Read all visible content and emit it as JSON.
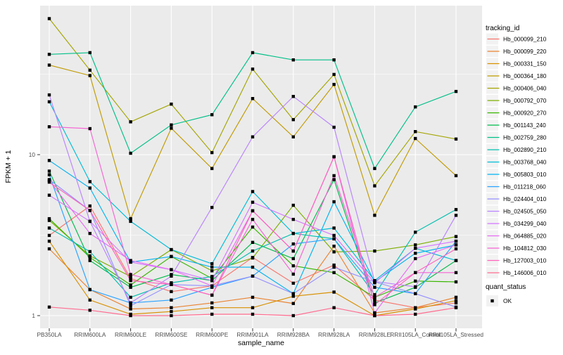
{
  "figure": {
    "y_axis_title": "FPKM + 1",
    "x_axis_title": "sample_name",
    "y_tick_labels": [
      "10",
      "1"
    ],
    "legend": {
      "tracking_title": "tracking_id",
      "quant_title": "quant_status",
      "quant_items": [
        {
          "label": "OK",
          "symbol": "filled-square",
          "color": "#000000"
        }
      ]
    }
  },
  "chart_data": {
    "type": "line",
    "title": "",
    "xlabel": "sample_name",
    "ylabel": "FPKM + 1",
    "y_scale": "log10",
    "ylim": [
      0.83,
      83
    ],
    "y_major_gridlines": [
      1,
      10
    ],
    "y_minor_gridlines": [
      3.1623,
      31.623
    ],
    "grid": "on",
    "legend_position": "right",
    "panel_background": "#EBEBEB",
    "grid_color": "#FFFFFF",
    "point_shape": "filled-square",
    "point_color": "#000000",
    "categories": [
      "PB350LA",
      "RRIM600LA",
      "RRIM600LE",
      "RRIM600SE",
      "RRIM600PE",
      "RRIM901LA",
      "RRIM928BA",
      "RRIM928LA",
      "RRIM928LE",
      "RRII105LA_Control",
      "RRII105LA_Stressed"
    ],
    "series": [
      {
        "name": "Hb_000099_210",
        "color": "#F8766D",
        "values": [
          3.15,
          4.8,
          1.7,
          1.41,
          1.53,
          2.3,
          1.59,
          2.06,
          1.25,
          1.12,
          1.2
        ]
      },
      {
        "name": "Hb_000099_220",
        "color": "#EA8331",
        "values": [
          2.6,
          1.45,
          1.1,
          1.12,
          1.2,
          1.3,
          1.19,
          2.7,
          1.04,
          1.12,
          1.3
        ]
      },
      {
        "name": "Hb_000331_150",
        "color": "#D89000",
        "values": [
          2.9,
          1.25,
          1.02,
          1.06,
          1.12,
          1.12,
          1.32,
          1.4,
          1.0,
          1.1,
          1.24
        ]
      },
      {
        "name": "Hb_000364_180",
        "color": "#C09B00",
        "values": [
          36,
          31,
          4.0,
          14.6,
          8.2,
          22.3,
          12.9,
          27.3,
          4.2,
          12.6,
          7.4
        ]
      },
      {
        "name": "Hb_000406_040",
        "color": "#A3A500",
        "values": [
          70,
          33.5,
          16,
          20.6,
          10.3,
          34,
          16.5,
          31.5,
          6.4,
          13.9,
          12.5
        ]
      },
      {
        "name": "Hb_000792_070",
        "color": "#7CAE00",
        "values": [
          3.9,
          2.35,
          1.75,
          2.57,
          1.9,
          2.28,
          4.85,
          2.49,
          2.52,
          2.75,
          3.1
        ]
      },
      {
        "name": "Hb_000920_270",
        "color": "#39B600",
        "values": [
          4.0,
          2.3,
          1.55,
          2.33,
          1.7,
          3.55,
          2.04,
          1.85,
          1.3,
          1.64,
          1.62
        ]
      },
      {
        "name": "Hb_001143_240",
        "color": "#00BB4E",
        "values": [
          7.9,
          2.2,
          1.5,
          1.8,
          1.65,
          2.85,
          2.26,
          7.0,
          1.2,
          1.5,
          2.2
        ]
      },
      {
        "name": "Hb_002759_280",
        "color": "#00C087",
        "values": [
          42,
          43,
          10.2,
          15.3,
          17.7,
          43,
          38.8,
          38.8,
          8.2,
          19.8,
          24.7
        ]
      },
      {
        "name": "Hb_002890_210",
        "color": "#00C0AF",
        "values": [
          3.5,
          2.5,
          1.3,
          1.6,
          1.75,
          2.52,
          3.24,
          3.0,
          1.35,
          3.3,
          4.56
        ]
      },
      {
        "name": "Hb_003768_040",
        "color": "#00BCD8",
        "values": [
          21.3,
          6.8,
          3.85,
          2.57,
          2.1,
          5.9,
          3.24,
          3.5,
          1.65,
          2.62,
          2.2
        ]
      },
      {
        "name": "Hb_005803_010",
        "color": "#00B3F2",
        "values": [
          9.2,
          6.2,
          2.15,
          2.33,
          2.0,
          2.0,
          1.37,
          5.1,
          1.62,
          2.44,
          2.75
        ]
      },
      {
        "name": "Hb_011218_060",
        "color": "#29A3FF",
        "values": [
          7.5,
          1.45,
          1.2,
          1.25,
          1.5,
          1.76,
          2.79,
          3.0,
          1.5,
          1.37,
          2.9
        ]
      },
      {
        "name": "Hb_024404_010",
        "color": "#9590FF",
        "values": [
          7.0,
          4.5,
          1.15,
          1.56,
          1.53,
          1.76,
          1.37,
          2.0,
          1.62,
          1.37,
          1.13
        ]
      },
      {
        "name": "Hb_024505_050",
        "color": "#B983FF",
        "values": [
          23.5,
          3.85,
          1.2,
          1.76,
          4.7,
          12.9,
          23,
          14.8,
          1.63,
          1.51,
          4.2
        ]
      },
      {
        "name": "Hb_034299_040",
        "color": "#D376FF",
        "values": [
          5.6,
          3.85,
          2.15,
          1.93,
          1.65,
          5.06,
          3.96,
          3.15,
          1.6,
          2.62,
          2.9
        ]
      },
      {
        "name": "Hb_064885_020",
        "color": "#E76BF3",
        "values": [
          6.9,
          3.24,
          2.2,
          1.93,
          1.53,
          4.48,
          2.52,
          9.7,
          1.04,
          2.26,
          2.75
        ]
      },
      {
        "name": "Hb_104812_030",
        "color": "#F564D4",
        "values": [
          14.9,
          14.5,
          1.8,
          1.56,
          1.34,
          3.96,
          1.81,
          7.4,
          1.3,
          1.85,
          1.85
        ]
      },
      {
        "name": "Hb_127003_010",
        "color": "#FF62BC",
        "values": [
          6.75,
          4.5,
          1.65,
          1.56,
          1.34,
          4.48,
          2.52,
          9.7,
          1.17,
          1.85,
          2.6
        ]
      },
      {
        "name": "Hb_146006_010",
        "color": "#FF6C90",
        "values": [
          1.13,
          1.08,
          1.0,
          1.0,
          1.02,
          1.02,
          1.0,
          1.12,
          1.0,
          1.02,
          1.12
        ]
      }
    ]
  }
}
